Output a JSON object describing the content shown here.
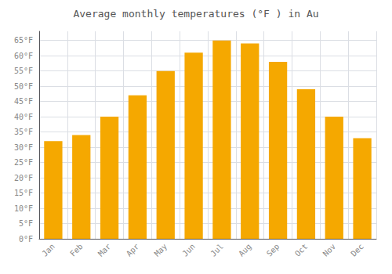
{
  "chart_data": {
    "type": "bar",
    "title": "Average monthly temperatures (°F ) in Au",
    "categories": [
      "Jan",
      "Feb",
      "Mar",
      "Apr",
      "May",
      "Jun",
      "Jul",
      "Aug",
      "Sep",
      "Oct",
      "Nov",
      "Dec"
    ],
    "values": [
      32,
      34,
      40,
      47,
      55,
      61,
      65,
      64,
      58,
      49,
      40,
      33
    ],
    "color": "#F5A800",
    "ylim": [
      0,
      68
    ],
    "yticks": [
      {
        "value": 0,
        "label": "0°F"
      },
      {
        "value": 5,
        "label": "5°F"
      },
      {
        "value": 10,
        "label": "10°F"
      },
      {
        "value": 15,
        "label": "15°F"
      },
      {
        "value": 20,
        "label": "20°F"
      },
      {
        "value": 25,
        "label": "25°F"
      },
      {
        "value": 30,
        "label": "30°F"
      },
      {
        "value": 35,
        "label": "35°F"
      },
      {
        "value": 40,
        "label": "40°F"
      },
      {
        "value": 45,
        "label": "45°F"
      },
      {
        "value": 50,
        "label": "50°F"
      },
      {
        "value": 55,
        "label": "55°F"
      },
      {
        "value": 60,
        "label": "60°F"
      },
      {
        "value": 65,
        "label": "65°F"
      }
    ],
    "grid": true
  }
}
